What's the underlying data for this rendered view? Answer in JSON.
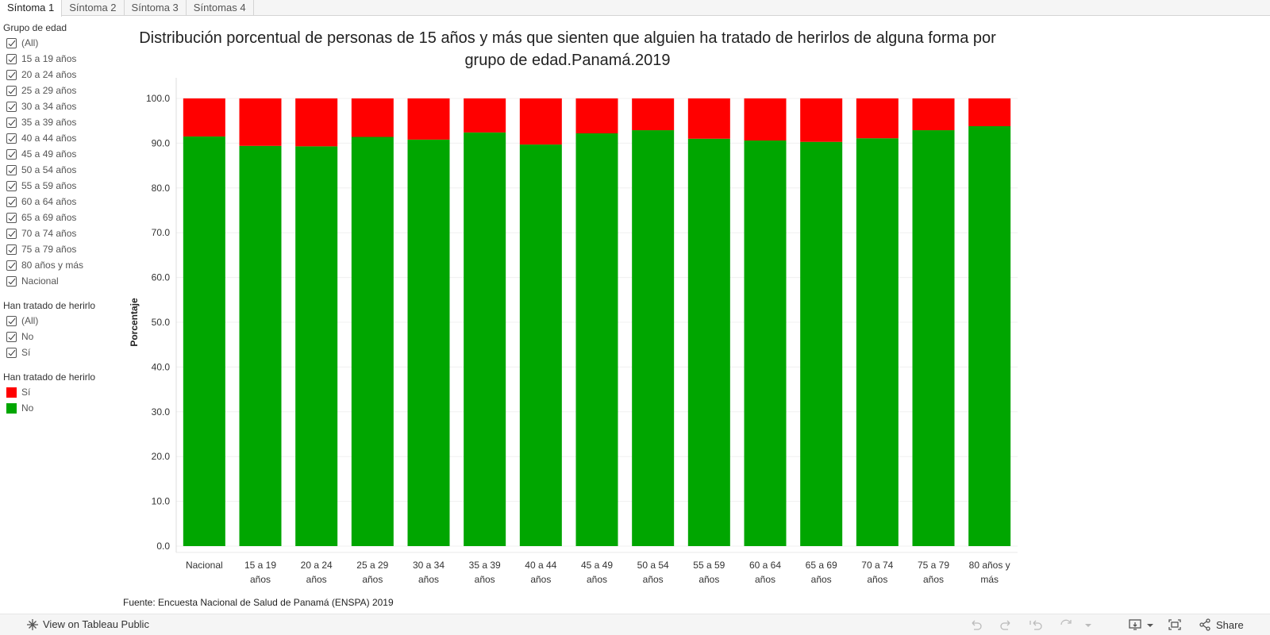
{
  "tabs": [
    "Síntoma 1",
    "Síntoma 2",
    "Síntoma 3",
    "Síntomas 4"
  ],
  "filters": {
    "age_group": {
      "title": "Grupo de edad",
      "items": [
        "(All)",
        "15 a 19 años",
        "20 a 24 años",
        "25 a 29 años",
        "30 a 34 años",
        "35 a 39 años",
        "40 a 44 años",
        "45 a 49 años",
        "50 a 54 años",
        "55 a 59 años",
        "60 a 64 años",
        "65 a 69 años",
        "70 a 74 años",
        "75 a 79 años",
        "80 años y más",
        "Nacional"
      ]
    },
    "harm": {
      "title": "Han tratado de herirlo",
      "items": [
        "(All)",
        "No",
        "Sí"
      ]
    }
  },
  "legend": {
    "title": "Han tratado de herirlo",
    "items": [
      {
        "label": "Sí",
        "color": "#ff0000"
      },
      {
        "label": "No",
        "color": "#00a600"
      }
    ]
  },
  "chart_data": {
    "type": "bar",
    "stacked": true,
    "title": "Distribución porcentual de personas de 15 años y más que sienten que alguien ha tratado de herirlos de alguna forma por grupo de edad.Panamá.2019",
    "xlabel": "",
    "ylabel": "Porcentaje",
    "ylim": [
      0,
      100
    ],
    "yticks": [
      "0.0",
      "10.0",
      "20.0",
      "30.0",
      "40.0",
      "50.0",
      "60.0",
      "70.0",
      "80.0",
      "90.0",
      "100.0"
    ],
    "categories": [
      [
        "Nacional"
      ],
      [
        "15 a 19",
        "años"
      ],
      [
        "20 a 24",
        "años"
      ],
      [
        "25 a 29",
        "años"
      ],
      [
        "30 a 34",
        "años"
      ],
      [
        "35 a 39",
        "años"
      ],
      [
        "40 a 44",
        "años"
      ],
      [
        "45 a 49",
        "años"
      ],
      [
        "50 a 54",
        "años"
      ],
      [
        "55 a 59",
        "años"
      ],
      [
        "60 a 64",
        "años"
      ],
      [
        "65 a 69",
        "años"
      ],
      [
        "70 a 74",
        "años"
      ],
      [
        "75 a 79",
        "años"
      ],
      [
        "80 años y",
        "más"
      ]
    ],
    "series": [
      {
        "name": "No",
        "color": "#00a600",
        "values": [
          91.5,
          89.4,
          89.3,
          91.4,
          90.8,
          92.4,
          89.7,
          92.2,
          92.9,
          91.0,
          90.6,
          90.3,
          91.1,
          92.9,
          93.8
        ]
      },
      {
        "name": "Sí",
        "color": "#ff0000",
        "values": [
          8.5,
          10.6,
          10.7,
          8.6,
          9.2,
          7.6,
          10.3,
          7.8,
          7.1,
          9.0,
          9.4,
          9.7,
          8.9,
          7.1,
          6.2
        ]
      }
    ]
  },
  "source": "Fuente: Encuesta Nacional de Salud de Panamá (ENSPA) 2019",
  "footer": {
    "view_link": "View on Tableau Public",
    "share": "Share"
  }
}
